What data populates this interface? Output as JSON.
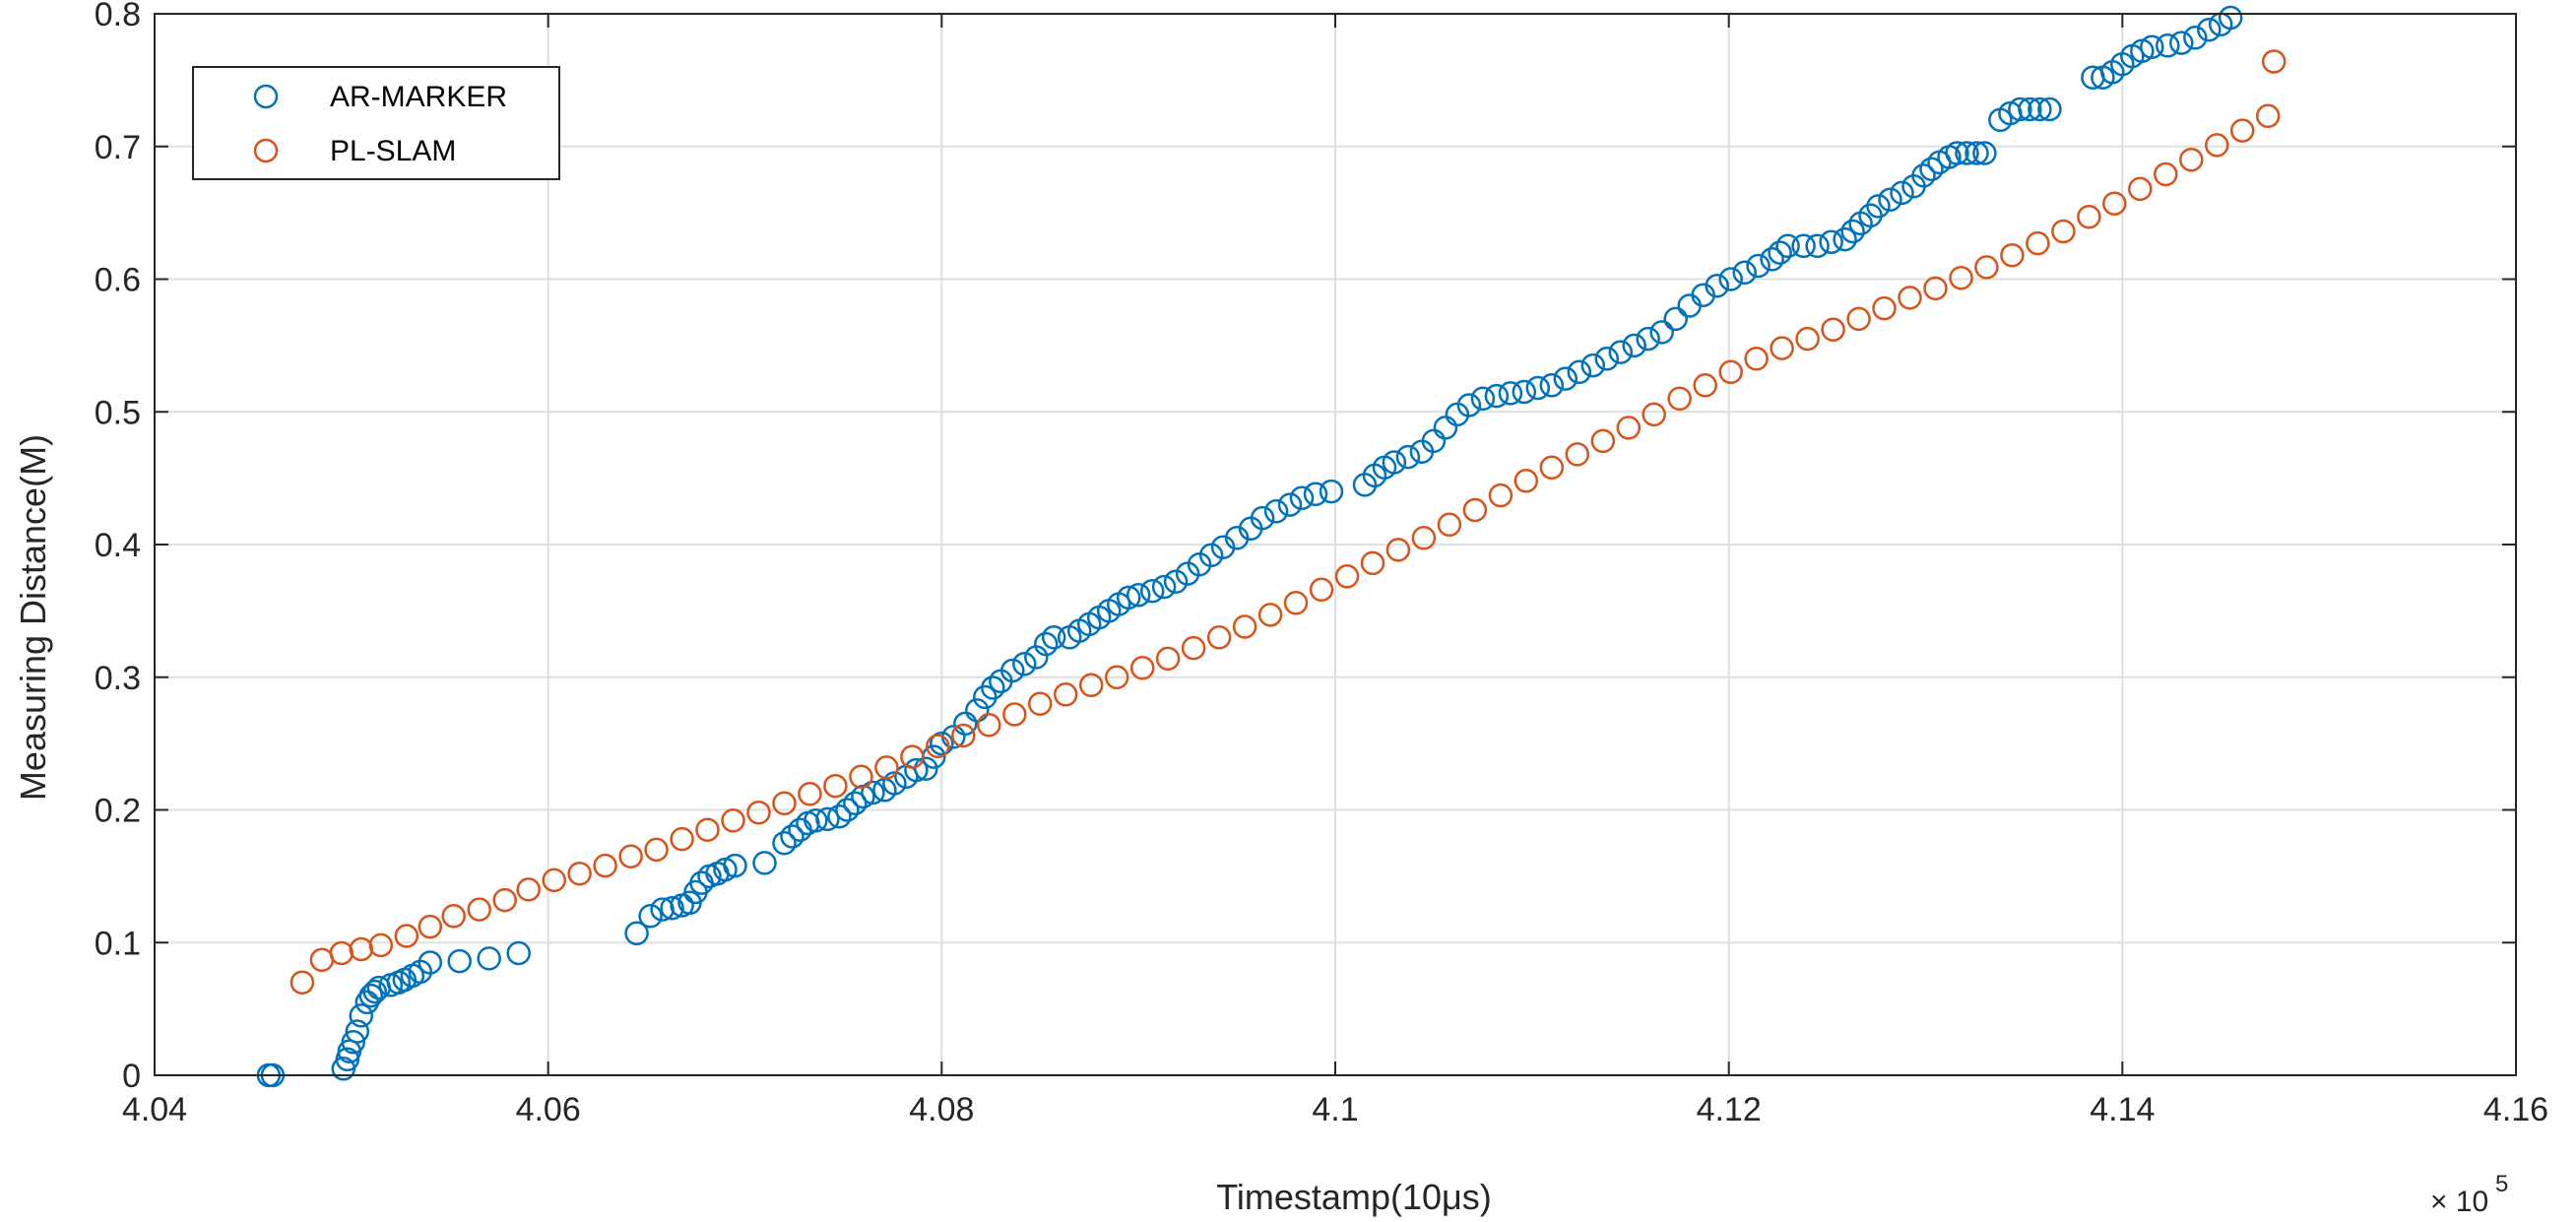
{
  "chart_data": {
    "type": "scatter",
    "title": "",
    "xlabel": "Timestamp(10μs)",
    "ylabel": "Measuring Distance(M)",
    "xlim": [
      4.04,
      4.16
    ],
    "ylim": [
      0,
      0.8
    ],
    "x_multiplier_label": "× 10",
    "x_multiplier_exponent": "5",
    "xticks": [
      4.04,
      4.06,
      4.08,
      4.1,
      4.12,
      4.14,
      4.16
    ],
    "xtick_labels": [
      "4.04",
      "4.06",
      "4.08",
      "4.1",
      "4.12",
      "4.14",
      "4.16"
    ],
    "yticks": [
      0,
      0.1,
      0.2,
      0.3,
      0.4,
      0.5,
      0.6,
      0.7,
      0.8
    ],
    "ytick_labels": [
      "0",
      "0.1",
      "0.2",
      "0.3",
      "0.4",
      "0.5",
      "0.6",
      "0.7",
      "0.8"
    ],
    "grid": true,
    "legend_position": "top-left",
    "series": [
      {
        "name": "AR-MARKER",
        "color": "#0072BD",
        "marker": "circle",
        "points": [
          [
            4.0458,
            0.0
          ],
          [
            4.046,
            0.0
          ],
          [
            4.0496,
            0.005
          ],
          [
            4.0498,
            0.012
          ],
          [
            4.0499,
            0.018
          ],
          [
            4.0501,
            0.025
          ],
          [
            4.0503,
            0.033
          ],
          [
            4.0505,
            0.045
          ],
          [
            4.0508,
            0.055
          ],
          [
            4.051,
            0.06
          ],
          [
            4.0512,
            0.063
          ],
          [
            4.0514,
            0.066
          ],
          [
            4.052,
            0.068
          ],
          [
            4.0524,
            0.07
          ],
          [
            4.0527,
            0.072
          ],
          [
            4.0531,
            0.075
          ],
          [
            4.0535,
            0.078
          ],
          [
            4.054,
            0.085
          ],
          [
            4.0555,
            0.086
          ],
          [
            4.057,
            0.088
          ],
          [
            4.0585,
            0.092
          ],
          [
            4.0645,
            0.107
          ],
          [
            4.0652,
            0.12
          ],
          [
            4.0658,
            0.125
          ],
          [
            4.0663,
            0.126
          ],
          [
            4.0668,
            0.128
          ],
          [
            4.0672,
            0.13
          ],
          [
            4.0675,
            0.138
          ],
          [
            4.0678,
            0.145
          ],
          [
            4.0682,
            0.15
          ],
          [
            4.0686,
            0.152
          ],
          [
            4.069,
            0.155
          ],
          [
            4.0695,
            0.158
          ],
          [
            4.071,
            0.16
          ],
          [
            4.072,
            0.175
          ],
          [
            4.0724,
            0.18
          ],
          [
            4.0728,
            0.185
          ],
          [
            4.0732,
            0.19
          ],
          [
            4.0736,
            0.192
          ],
          [
            4.0742,
            0.193
          ],
          [
            4.0748,
            0.195
          ],
          [
            4.0752,
            0.2
          ],
          [
            4.0756,
            0.205
          ],
          [
            4.076,
            0.21
          ],
          [
            4.0765,
            0.213
          ],
          [
            4.0771,
            0.215
          ],
          [
            4.0776,
            0.22
          ],
          [
            4.0782,
            0.225
          ],
          [
            4.0787,
            0.23
          ],
          [
            4.0792,
            0.231
          ],
          [
            4.0796,
            0.24
          ],
          [
            4.08,
            0.25
          ],
          [
            4.0806,
            0.255
          ],
          [
            4.0812,
            0.265
          ],
          [
            4.0818,
            0.275
          ],
          [
            4.0822,
            0.285
          ],
          [
            4.0826,
            0.292
          ],
          [
            4.083,
            0.297
          ],
          [
            4.0836,
            0.305
          ],
          [
            4.0842,
            0.31
          ],
          [
            4.0848,
            0.315
          ],
          [
            4.0853,
            0.325
          ],
          [
            4.0857,
            0.33
          ],
          [
            4.0865,
            0.33
          ],
          [
            4.087,
            0.335
          ],
          [
            4.0875,
            0.34
          ],
          [
            4.088,
            0.345
          ],
          [
            4.0885,
            0.35
          ],
          [
            4.089,
            0.355
          ],
          [
            4.0895,
            0.36
          ],
          [
            4.09,
            0.362
          ],
          [
            4.0907,
            0.365
          ],
          [
            4.0913,
            0.368
          ],
          [
            4.0919,
            0.372
          ],
          [
            4.0925,
            0.378
          ],
          [
            4.0931,
            0.385
          ],
          [
            4.0937,
            0.392
          ],
          [
            4.0943,
            0.398
          ],
          [
            4.095,
            0.405
          ],
          [
            4.0957,
            0.412
          ],
          [
            4.0963,
            0.42
          ],
          [
            4.097,
            0.425
          ],
          [
            4.0977,
            0.43
          ],
          [
            4.0983,
            0.435
          ],
          [
            4.099,
            0.438
          ],
          [
            4.0998,
            0.44
          ],
          [
            4.1015,
            0.445
          ],
          [
            4.102,
            0.452
          ],
          [
            4.1025,
            0.458
          ],
          [
            4.103,
            0.462
          ],
          [
            4.1037,
            0.466
          ],
          [
            4.1044,
            0.47
          ],
          [
            4.105,
            0.478
          ],
          [
            4.1056,
            0.488
          ],
          [
            4.1062,
            0.498
          ],
          [
            4.1068,
            0.505
          ],
          [
            4.1075,
            0.51
          ],
          [
            4.1082,
            0.512
          ],
          [
            4.1089,
            0.514
          ],
          [
            4.1096,
            0.515
          ],
          [
            4.1103,
            0.518
          ],
          [
            4.111,
            0.52
          ],
          [
            4.1117,
            0.525
          ],
          [
            4.1124,
            0.53
          ],
          [
            4.1131,
            0.535
          ],
          [
            4.1138,
            0.54
          ],
          [
            4.1145,
            0.545
          ],
          [
            4.1152,
            0.55
          ],
          [
            4.1159,
            0.555
          ],
          [
            4.1166,
            0.56
          ],
          [
            4.1173,
            0.57
          ],
          [
            4.118,
            0.58
          ],
          [
            4.1187,
            0.588
          ],
          [
            4.1194,
            0.595
          ],
          [
            4.1201,
            0.6
          ],
          [
            4.1208,
            0.605
          ],
          [
            4.1215,
            0.61
          ],
          [
            4.1222,
            0.615
          ],
          [
            4.1226,
            0.62
          ],
          [
            4.123,
            0.625
          ],
          [
            4.1238,
            0.625
          ],
          [
            4.1245,
            0.625
          ],
          [
            4.1252,
            0.628
          ],
          [
            4.1259,
            0.63
          ],
          [
            4.1263,
            0.636
          ],
          [
            4.1267,
            0.642
          ],
          [
            4.1272,
            0.648
          ],
          [
            4.1276,
            0.655
          ],
          [
            4.1282,
            0.66
          ],
          [
            4.1288,
            0.665
          ],
          [
            4.1294,
            0.67
          ],
          [
            4.1299,
            0.678
          ],
          [
            4.1303,
            0.683
          ],
          [
            4.1307,
            0.688
          ],
          [
            4.1312,
            0.692
          ],
          [
            4.1316,
            0.695
          ],
          [
            4.1321,
            0.695
          ],
          [
            4.1326,
            0.695
          ],
          [
            4.133,
            0.695
          ],
          [
            4.1338,
            0.72
          ],
          [
            4.1343,
            0.725
          ],
          [
            4.1348,
            0.728
          ],
          [
            4.1353,
            0.728
          ],
          [
            4.1358,
            0.728
          ],
          [
            4.1363,
            0.728
          ],
          [
            4.1385,
            0.752
          ],
          [
            4.139,
            0.752
          ],
          [
            4.1395,
            0.756
          ],
          [
            4.14,
            0.762
          ],
          [
            4.1405,
            0.768
          ],
          [
            4.141,
            0.772
          ],
          [
            4.1415,
            0.775
          ],
          [
            4.1423,
            0.776
          ],
          [
            4.143,
            0.778
          ],
          [
            4.1437,
            0.782
          ],
          [
            4.1444,
            0.788
          ],
          [
            4.145,
            0.792
          ],
          [
            4.1455,
            0.797
          ]
        ]
      },
      {
        "name": "PL-SLAM",
        "color": "#D95319",
        "marker": "circle",
        "points": [
          [
            4.0475,
            0.07
          ],
          [
            4.0485,
            0.087
          ],
          [
            4.0495,
            0.092
          ],
          [
            4.0505,
            0.095
          ],
          [
            4.0515,
            0.098
          ],
          [
            4.0528,
            0.105
          ],
          [
            4.054,
            0.112
          ],
          [
            4.0552,
            0.12
          ],
          [
            4.0565,
            0.125
          ],
          [
            4.0578,
            0.132
          ],
          [
            4.059,
            0.14
          ],
          [
            4.0603,
            0.147
          ],
          [
            4.0616,
            0.152
          ],
          [
            4.0629,
            0.158
          ],
          [
            4.0642,
            0.165
          ],
          [
            4.0655,
            0.17
          ],
          [
            4.0668,
            0.178
          ],
          [
            4.0681,
            0.185
          ],
          [
            4.0694,
            0.192
          ],
          [
            4.0707,
            0.198
          ],
          [
            4.072,
            0.205
          ],
          [
            4.0733,
            0.212
          ],
          [
            4.0746,
            0.218
          ],
          [
            4.0759,
            0.225
          ],
          [
            4.0772,
            0.232
          ],
          [
            4.0785,
            0.24
          ],
          [
            4.0798,
            0.248
          ],
          [
            4.0811,
            0.256
          ],
          [
            4.0824,
            0.264
          ],
          [
            4.0837,
            0.272
          ],
          [
            4.085,
            0.28
          ],
          [
            4.0863,
            0.287
          ],
          [
            4.0876,
            0.294
          ],
          [
            4.0889,
            0.3
          ],
          [
            4.0902,
            0.307
          ],
          [
            4.0915,
            0.314
          ],
          [
            4.0928,
            0.322
          ],
          [
            4.0941,
            0.33
          ],
          [
            4.0954,
            0.338
          ],
          [
            4.0967,
            0.347
          ],
          [
            4.098,
            0.356
          ],
          [
            4.0993,
            0.366
          ],
          [
            4.1006,
            0.376
          ],
          [
            4.1019,
            0.386
          ],
          [
            4.1032,
            0.396
          ],
          [
            4.1045,
            0.405
          ],
          [
            4.1058,
            0.415
          ],
          [
            4.1071,
            0.426
          ],
          [
            4.1084,
            0.437
          ],
          [
            4.1097,
            0.448
          ],
          [
            4.111,
            0.458
          ],
          [
            4.1123,
            0.468
          ],
          [
            4.1136,
            0.478
          ],
          [
            4.1149,
            0.488
          ],
          [
            4.1162,
            0.498
          ],
          [
            4.1175,
            0.51
          ],
          [
            4.1188,
            0.52
          ],
          [
            4.1201,
            0.53
          ],
          [
            4.1214,
            0.54
          ],
          [
            4.1227,
            0.548
          ],
          [
            4.124,
            0.555
          ],
          [
            4.1253,
            0.562
          ],
          [
            4.1266,
            0.57
          ],
          [
            4.1279,
            0.578
          ],
          [
            4.1292,
            0.586
          ],
          [
            4.1305,
            0.593
          ],
          [
            4.1318,
            0.601
          ],
          [
            4.1331,
            0.609
          ],
          [
            4.1344,
            0.618
          ],
          [
            4.1357,
            0.627
          ],
          [
            4.137,
            0.636
          ],
          [
            4.1383,
            0.647
          ],
          [
            4.1396,
            0.657
          ],
          [
            4.1409,
            0.668
          ],
          [
            4.1422,
            0.679
          ],
          [
            4.1435,
            0.69
          ],
          [
            4.1448,
            0.701
          ],
          [
            4.1461,
            0.712
          ],
          [
            4.1474,
            0.723
          ],
          [
            4.1477,
            0.764
          ]
        ]
      }
    ]
  }
}
